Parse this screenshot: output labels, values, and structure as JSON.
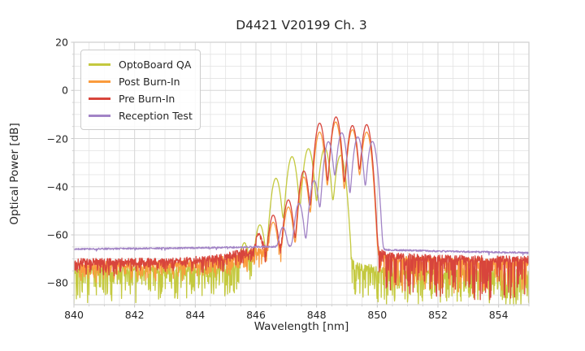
{
  "figure": {
    "background": "#ffffff",
    "text_color": "#262626",
    "grid_major_color": "#d6d6d6",
    "grid_minor_color": "#e2e2e2",
    "frame_color": "#cfcfcf",
    "tick_mark_color": "#c8c8c8"
  },
  "chart_data": {
    "type": "line",
    "title": "D4421 V20199 Ch. 3",
    "xlabel": "Wavelength [nm]",
    "ylabel": "Optical Power [dB]",
    "xlim": [
      840,
      855
    ],
    "ylim": [
      -89,
      20
    ],
    "grid": true,
    "legend_position": "upper left",
    "x_major_ticks": [
      840,
      842,
      844,
      846,
      848,
      850,
      852,
      854
    ],
    "x_tick_labels": [
      "840",
      "842",
      "844",
      "846",
      "848",
      "850",
      "852",
      "854"
    ],
    "x_minor_step": 0.5,
    "y_major_ticks": [
      20,
      0,
      -20,
      -40,
      -60,
      -80
    ],
    "y_tick_labels": [
      "20",
      "0",
      "−20",
      "−40",
      "−60",
      "−80"
    ],
    "y_minor_step": 5,
    "series_note": "Optical spectra: 'modes' are [center_nm, peak_dB] Gaussian laser modes (sigma_nm width), 'floor_points' are [nm, dB] noise-floor control points, 'noise' describes the random floor texture.",
    "series": [
      {
        "name": "OptoBoard QA",
        "color": "#c4c93f",
        "seed": 7,
        "sigma_nm": 0.08,
        "modes": [
          [
            845.62,
            -64
          ],
          [
            846.13,
            -56
          ],
          [
            846.66,
            -36.5
          ],
          [
            847.19,
            -27.5
          ],
          [
            847.73,
            -24.2
          ],
          [
            848.27,
            -24.0
          ],
          [
            848.79,
            -27.0
          ]
        ],
        "floor_points": [
          [
            840,
            -75
          ],
          [
            844,
            -74.5
          ],
          [
            845.2,
            -72.5
          ],
          [
            845.9,
            -70.5
          ],
          [
            848.9,
            -71
          ],
          [
            849.35,
            -73.5
          ],
          [
            850.3,
            -75
          ],
          [
            852,
            -75.5
          ],
          [
            855,
            -76
          ]
        ],
        "noise": {
          "amp": 1.9,
          "spike_prob": 0.38,
          "spike_depth": [
            [
              840,
              12
            ],
            [
              855,
              13
            ]
          ]
        }
      },
      {
        "name": "Post Burn-In",
        "color": "#fa9b3d",
        "seed": 11,
        "sigma_nm": 0.075,
        "modes": [
          [
            846.57,
            -55
          ],
          [
            847.07,
            -48.5
          ],
          [
            847.58,
            -36
          ],
          [
            848.1,
            -17.3
          ],
          [
            848.63,
            -13.1
          ],
          [
            849.18,
            -16.3
          ],
          [
            849.65,
            -17.3
          ]
        ],
        "floor_points": [
          [
            840,
            -72.5
          ],
          [
            844,
            -72
          ],
          [
            845.3,
            -69.5
          ],
          [
            846.0,
            -67
          ],
          [
            849.9,
            -67
          ],
          [
            850.4,
            -70
          ],
          [
            852,
            -71
          ],
          [
            855,
            -71.5
          ]
        ],
        "noise": {
          "amp": 1.5,
          "spike_prob": 0.3,
          "spike_depth": [
            [
              840,
              6
            ],
            [
              849.9,
              6
            ],
            [
              850.4,
              13
            ],
            [
              855,
              13
            ]
          ]
        }
      },
      {
        "name": "Pre Burn-In",
        "color": "#d8453c",
        "seed": 13,
        "sigma_nm": 0.075,
        "modes": [
          [
            846.1,
            -60.5
          ],
          [
            846.57,
            -52
          ],
          [
            847.07,
            -45.5
          ],
          [
            847.58,
            -33.5
          ],
          [
            848.1,
            -13.6
          ],
          [
            848.64,
            -11.0
          ],
          [
            849.18,
            -14.6
          ],
          [
            849.65,
            -14.2
          ]
        ],
        "floor_points": [
          [
            840,
            -71.3
          ],
          [
            843.5,
            -71
          ],
          [
            844.8,
            -69.5
          ],
          [
            845.5,
            -67.5
          ],
          [
            846.0,
            -66
          ],
          [
            849.8,
            -66
          ],
          [
            850.2,
            -67.5
          ],
          [
            850.6,
            -69
          ],
          [
            852,
            -69.8
          ],
          [
            855,
            -70.3
          ]
        ],
        "noise": {
          "amp": 1.5,
          "spike_prob": 0.3,
          "spike_depth": [
            [
              840,
              5
            ],
            [
              849.9,
              5
            ],
            [
              850.3,
              16
            ],
            [
              855,
              17
            ]
          ]
        }
      },
      {
        "name": "Reception Test",
        "color": "#a284c6",
        "seed": 17,
        "sigma_nm": 0.075,
        "modes": [
          [
            846.89,
            -57.5
          ],
          [
            847.42,
            -47
          ],
          [
            847.92,
            -37.5
          ],
          [
            848.39,
            -21.3
          ],
          [
            848.83,
            -17.6
          ],
          [
            849.36,
            -19.3
          ],
          [
            849.84,
            -21.2
          ]
        ],
        "floor_points": [
          [
            840,
            -65.9
          ],
          [
            842,
            -65.7
          ],
          [
            844,
            -65.4
          ],
          [
            845.5,
            -65.1
          ],
          [
            846.2,
            -64.9
          ],
          [
            849.2,
            -65.4
          ],
          [
            850.3,
            -66.2
          ],
          [
            852,
            -66.8
          ],
          [
            855,
            -67.4
          ]
        ],
        "noise": {
          "amp": 0.35,
          "spike_prob": 0.02,
          "spike_depth": [
            [
              840,
              1
            ],
            [
              855,
              1
            ]
          ]
        }
      }
    ]
  }
}
